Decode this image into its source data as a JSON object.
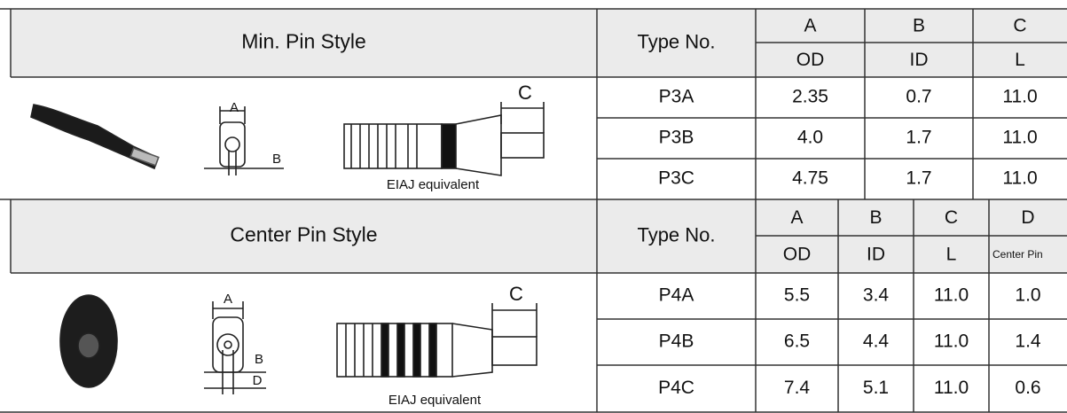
{
  "sections": [
    {
      "title": "Min. Pin Style",
      "type_header": "Type No.",
      "columns": [
        {
          "letter": "A",
          "dim": "OD"
        },
        {
          "letter": "B",
          "dim": "ID"
        },
        {
          "letter": "C",
          "dim": "L"
        }
      ],
      "drawing": {
        "labels": [
          "A",
          "B",
          "C"
        ],
        "caption": "EIAJ equivalent"
      },
      "rows": [
        [
          "P3A",
          "2.35",
          "0.7",
          "11.0"
        ],
        [
          "P3B",
          "4.0",
          "1.7",
          "11.0"
        ],
        [
          "P3C",
          "4.75",
          "1.7",
          "11.0"
        ]
      ]
    },
    {
      "title": "Center Pin Style",
      "type_header": "Type No.",
      "columns": [
        {
          "letter": "A",
          "dim": "OD"
        },
        {
          "letter": "B",
          "dim": "ID"
        },
        {
          "letter": "C",
          "dim": "L"
        },
        {
          "letter": "D",
          "dim": "Center Pin"
        }
      ],
      "drawing": {
        "labels": [
          "A",
          "B",
          "C",
          "D"
        ],
        "caption": "EIAJ equivalent"
      },
      "rows": [
        [
          "P4A",
          "5.5",
          "3.4",
          "11.0",
          "1.0"
        ],
        [
          "P4B",
          "6.5",
          "4.4",
          "11.0",
          "1.4"
        ],
        [
          "P4C",
          "7.4",
          "5.1",
          "11.0",
          "0.6"
        ]
      ]
    }
  ]
}
